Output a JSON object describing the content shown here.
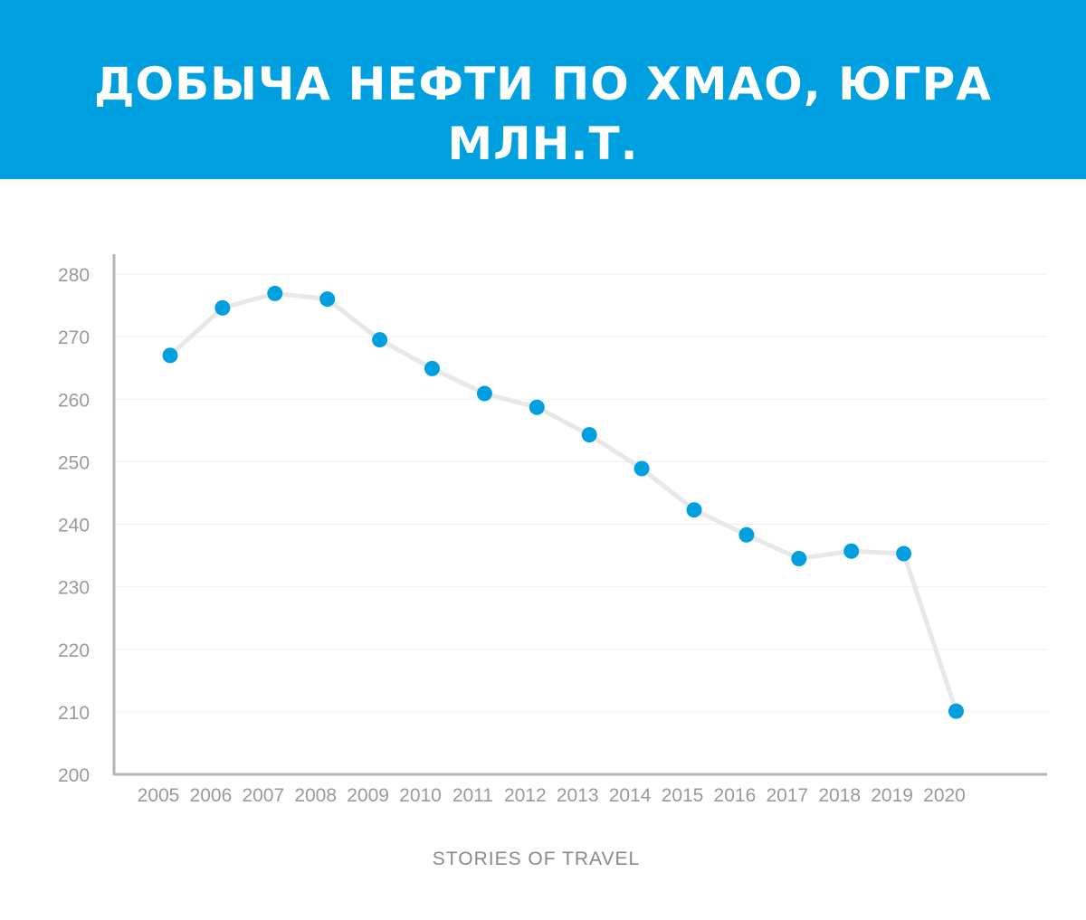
{
  "header": {
    "title": "ДОБЫЧА НЕФТИ ПО ХМАО, ЮГРА МЛН.Т."
  },
  "footer": {
    "credit": "STORIES OF TRAVEL"
  },
  "colors": {
    "header_bg": "#009fe0",
    "marker": "#009fe0",
    "line": "#e8e8e8",
    "axis": "#b4b4b4",
    "grid": "#efefef"
  },
  "chart_data": {
    "type": "line",
    "title": "ДОБЫЧА НЕФТИ ПО ХМАО, ЮГРА МЛН.Т.",
    "xlabel": "",
    "ylabel": "",
    "ylim": [
      200,
      280
    ],
    "yticks": [
      200,
      210,
      220,
      230,
      240,
      250,
      260,
      270,
      280
    ],
    "grid": true,
    "categories": [
      "2005",
      "2006",
      "2007",
      "2008",
      "2009",
      "2010",
      "2011",
      "2012",
      "2013",
      "2014",
      "2015",
      "2016",
      "2017",
      "2018",
      "2019",
      "2020"
    ],
    "series": [
      {
        "name": "Добыча нефти",
        "values": [
          267.0,
          274.6,
          276.9,
          276.0,
          269.5,
          264.9,
          260.9,
          258.7,
          254.3,
          248.9,
          242.3,
          238.3,
          234.5,
          235.7,
          235.3,
          210.1
        ]
      }
    ]
  }
}
